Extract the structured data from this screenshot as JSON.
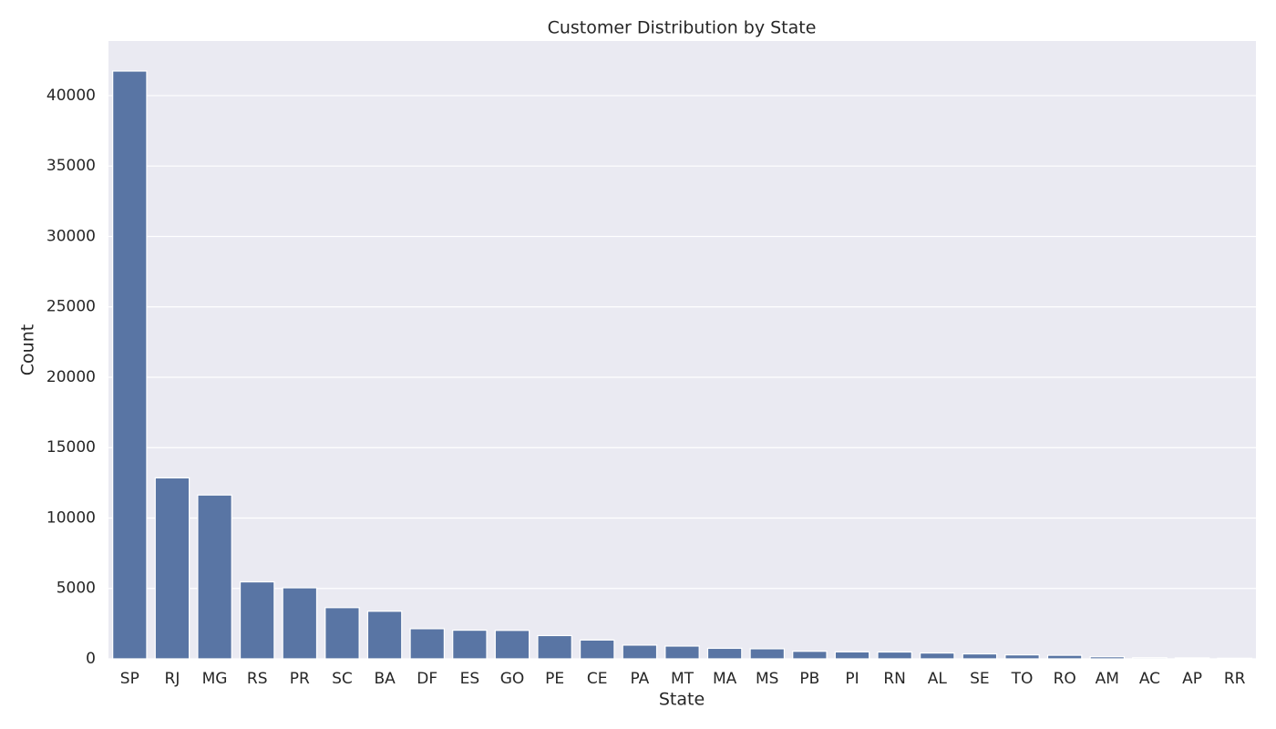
{
  "chart_data": {
    "type": "bar",
    "title": "Customer Distribution by State",
    "x_label": "State",
    "y_label": "Count",
    "categories": [
      "SP",
      "RJ",
      "MG",
      "RS",
      "PR",
      "SC",
      "BA",
      "DF",
      "ES",
      "GO",
      "PE",
      "CE",
      "PA",
      "MT",
      "MA",
      "MS",
      "PB",
      "PI",
      "RN",
      "AL",
      "SE",
      "TO",
      "RO",
      "AM",
      "AC",
      "AP",
      "RR"
    ],
    "values": [
      41746,
      12852,
      11635,
      5466,
      5045,
      3637,
      3380,
      2140,
      2033,
      2020,
      1652,
      1336,
      975,
      907,
      747,
      715,
      536,
      495,
      485,
      413,
      350,
      280,
      253,
      148,
      81,
      68,
      46
    ],
    "color": "#5975a4",
    "ylim": [
      0,
      43880
    ],
    "yticks": [
      0,
      5000,
      10000,
      15000,
      20000,
      25000,
      30000,
      35000,
      40000
    ],
    "grid": true
  }
}
